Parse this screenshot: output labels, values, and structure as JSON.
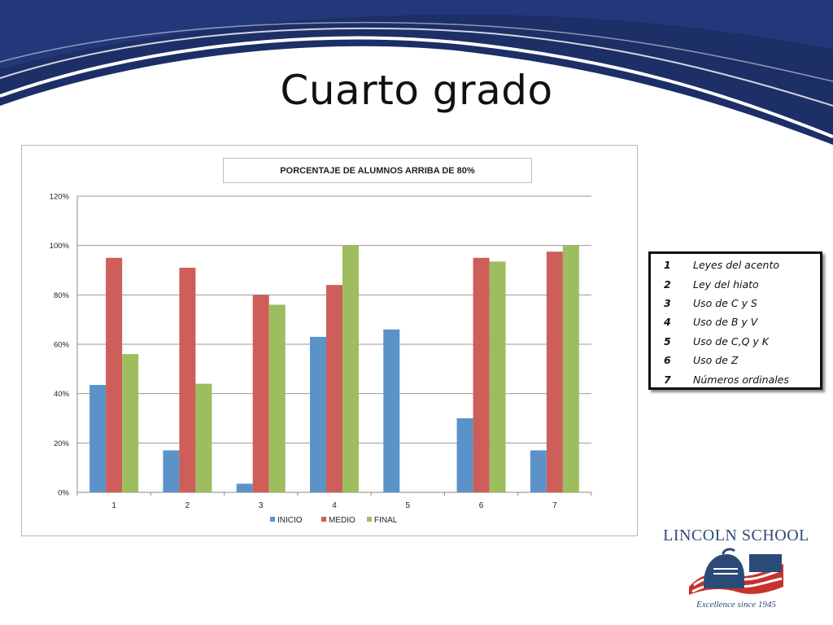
{
  "slide": {
    "title": "Cuarto grado"
  },
  "chart_data": {
    "type": "bar",
    "title": "PORCENTAJE DE ALUMNOS ARRIBA DE 80%",
    "categories": [
      "1",
      "2",
      "3",
      "4",
      "5",
      "6",
      "7"
    ],
    "series": [
      {
        "name": "INICIO",
        "color": "#5b93c8",
        "values": [
          43.5,
          17,
          3.5,
          63,
          66,
          30,
          17
        ]
      },
      {
        "name": "MEDIO",
        "color": "#cd5e5a",
        "values": [
          95,
          91,
          80,
          84,
          0,
          95,
          97.5
        ]
      },
      {
        "name": "FINAL",
        "color": "#9dbd5e",
        "values": [
          56,
          44,
          76,
          100,
          0,
          93.5,
          100
        ]
      }
    ],
    "ylim": [
      0,
      120
    ],
    "yticks": [
      "0%",
      "20%",
      "40%",
      "60%",
      "80%",
      "100%",
      "120%"
    ],
    "ytick_values": [
      0,
      20,
      40,
      60,
      80,
      100,
      120
    ],
    "grid": true,
    "legend_position": "bottom"
  },
  "legend_table": {
    "items": [
      {
        "num": "1",
        "text": "Leyes del acento"
      },
      {
        "num": "2",
        "text": "Ley del hiato"
      },
      {
        "num": "3",
        "text": "Uso de C y S"
      },
      {
        "num": "4",
        "text": "Uso de B y V"
      },
      {
        "num": "5",
        "text": "Uso de C,Q y K"
      },
      {
        "num": "6",
        "text": "Uso de Z"
      },
      {
        "num": "7",
        "text": "Números ordinales"
      }
    ]
  },
  "logo": {
    "name": "LINCOLN SCHOOL",
    "tagline": "Excellence since 1945",
    "colors": {
      "blue": "#2c4a78",
      "red": "#c8322e"
    }
  },
  "theme": {
    "banner_color": "#1c2f66"
  }
}
